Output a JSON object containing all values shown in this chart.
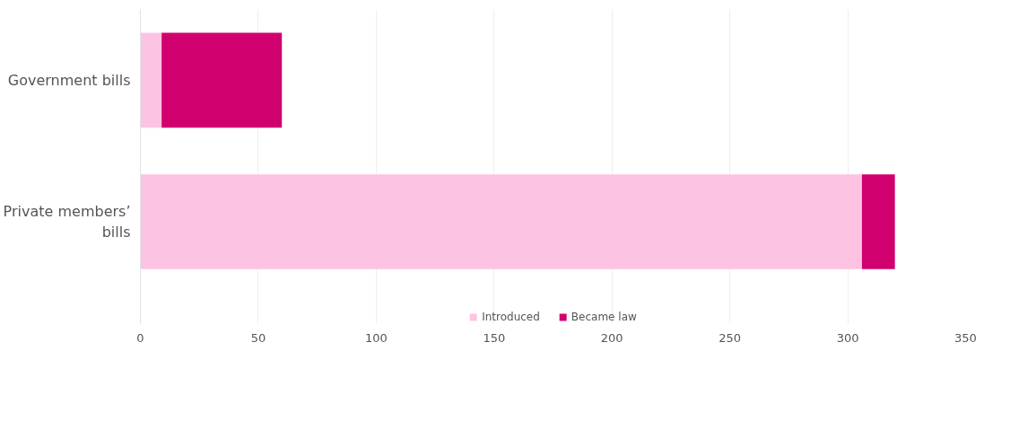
{
  "chart_data": {
    "type": "bar",
    "orientation": "horizontal",
    "stacked": true,
    "categories": [
      "Government bills",
      "Private members’ bills"
    ],
    "series": [
      {
        "name": "Introduced",
        "color": "#fdc3e3",
        "values": [
          9,
          306
        ]
      },
      {
        "name": "Became law",
        "color": "#d1006f",
        "values": [
          51,
          14
        ]
      }
    ],
    "xlim": [
      0,
      350
    ],
    "xticks": [
      0,
      50,
      100,
      150,
      200,
      250,
      300,
      350
    ],
    "grid": "x",
    "legend": "bottom"
  }
}
